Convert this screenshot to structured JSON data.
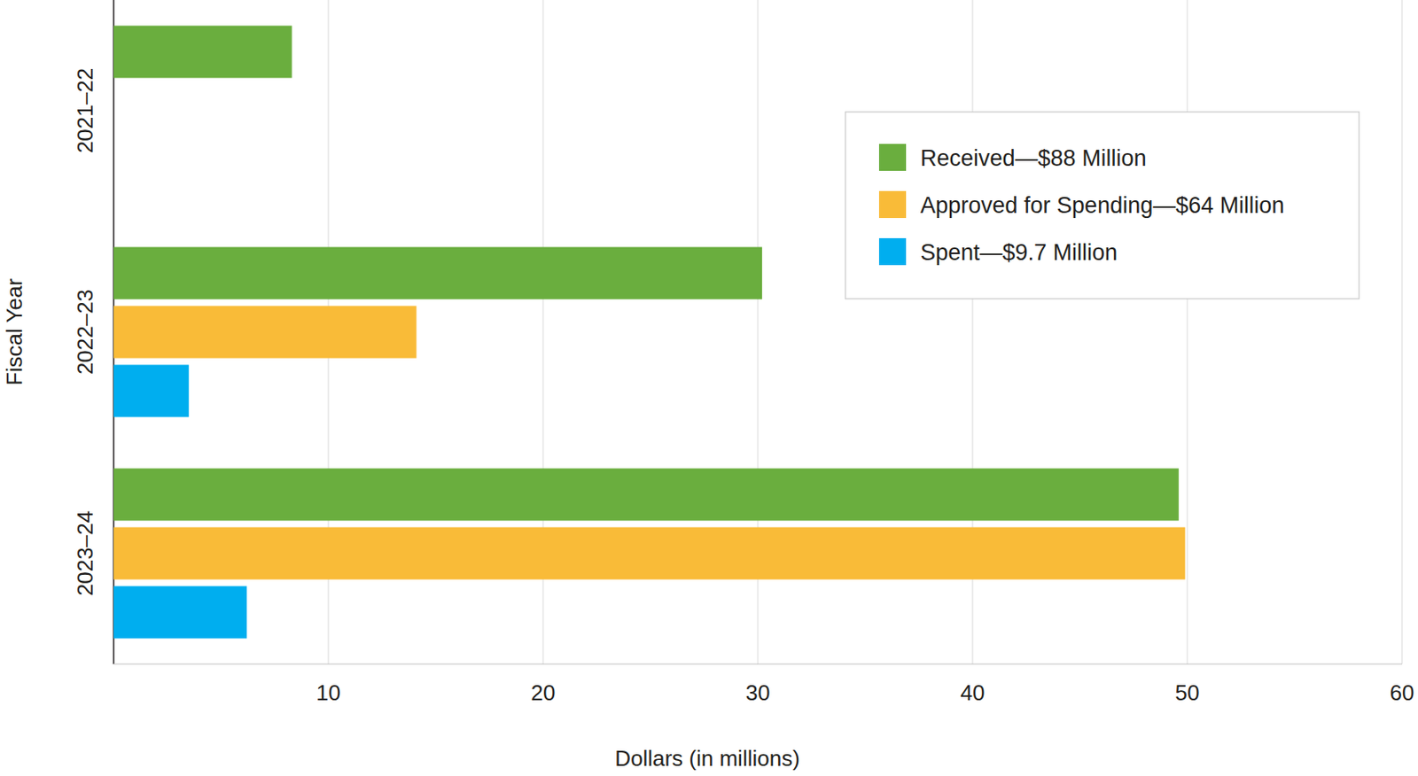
{
  "chart_data": {
    "type": "bar",
    "orientation": "horizontal",
    "categories": [
      "2021–22",
      "2022–23",
      "2023–24"
    ],
    "series": [
      {
        "name": "Received—$88 Million",
        "color": "#6aae3e",
        "values": [
          8.3,
          30.2,
          49.6
        ]
      },
      {
        "name": "Approved for Spending—$64 Million",
        "color": "#f9bb38",
        "values": [
          null,
          14.1,
          49.9
        ]
      },
      {
        "name": "Spent—$9.7 Million",
        "color": "#00aeef",
        "values": [
          null,
          3.5,
          6.2
        ]
      }
    ],
    "x_label": "Dollars (in millions)",
    "y_label": "Fiscal Year",
    "xlim": [
      0,
      60
    ],
    "xticks": [
      10,
      20,
      30,
      40,
      50,
      60
    ],
    "grid": true,
    "legend": "upper right"
  }
}
